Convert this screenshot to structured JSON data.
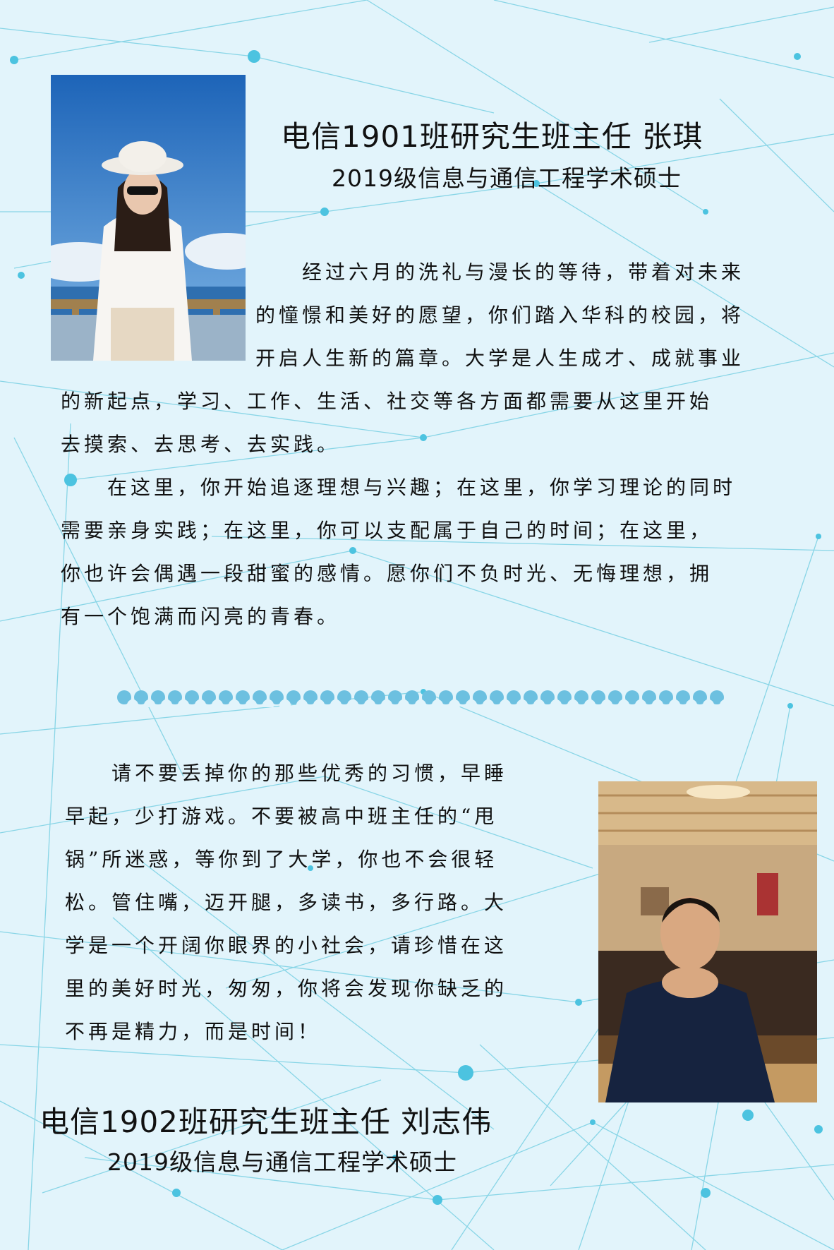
{
  "section1": {
    "title": "电信1901班研究生班主任  张琪",
    "subtitle": "2019级信息与通信工程学术硕士",
    "lines": [
      "　　经过六月的洗礼与漫长的等待，带着对未来",
      "的憧憬和美好的愿望，你们踏入华科的校园，将",
      "开启人生新的篇章。大学是人生成才、成就事业",
      "的新起点，学习、工作、生活、社交等各方面都需要从这里开始",
      "去摸索、去思考、去实践。",
      "　　在这里，你开始追逐理想与兴趣；在这里，你学习理论的同时",
      "需要亲身实践；在这里，你可以支配属于自己的时间；在这里，",
      "你也许会偶遇一段甜蜜的感情。愿你们不负时光、无悔理想，拥",
      "有一个饱满而闪亮的青春。"
    ]
  },
  "section2": {
    "lines": [
      "　　请不要丢掉你的那些优秀的习惯，早睡",
      "早起，少打游戏。不要被高中班主任的“甩",
      "锅”所迷惑，等你到了大学，你也不会很轻",
      "松。管住嘴，迈开腿，多读书，多行路。大",
      "学是一个开阔你眼界的小社会，请珍惜在这",
      "里的美好时光，匆匆，你将会发现你缺乏的",
      "不再是精力，而是时间！"
    ],
    "title": "电信1902班研究生班主任  刘志伟",
    "subtitle": "2019级信息与通信工程学术硕士"
  },
  "colors": {
    "background": "#e2f4fb",
    "network": "#5cc6de",
    "divider": "#6cc0e0"
  }
}
